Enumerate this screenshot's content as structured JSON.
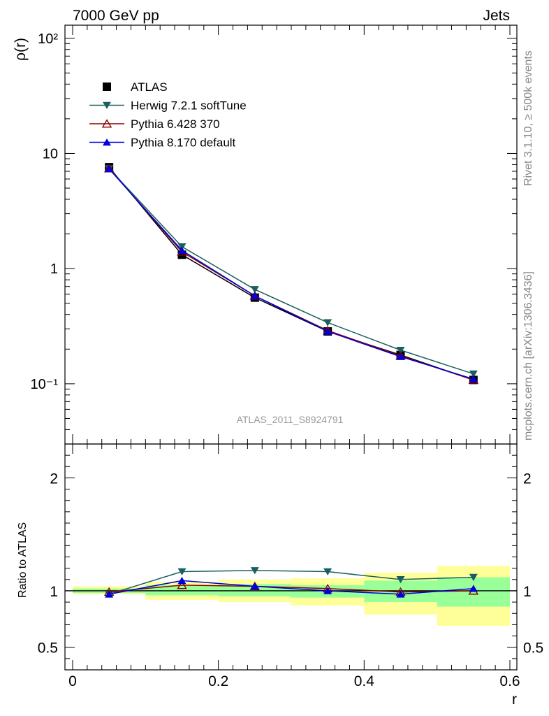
{
  "header": {
    "left": "7000 GeV pp",
    "right": "Jets"
  },
  "side_labels": {
    "top": "Rivet 3.1.10, ≥ 500k events",
    "bottom": "mcplots.cern.ch [arXiv:1306.3436]"
  },
  "watermark": "ATLAS_2011_S8924791",
  "colors": {
    "atlas": "#000000",
    "herwig": "#1a5f5f",
    "pythia6": "#8b0000",
    "pythia8": "#0000dd",
    "band_yellow": "#ffff99",
    "band_green": "#99ff99"
  },
  "chart_data": [
    {
      "type": "line",
      "ylabel": "ρ(r)",
      "xlabel": "",
      "yscale": "log",
      "ylim": [
        0.03,
        130
      ],
      "xlim": [
        0,
        0.6
      ],
      "y_tick_labels": [
        "10⁻¹",
        "1",
        "10",
        "10²"
      ],
      "legend": [
        "ATLAS",
        "Herwig 7.2.1 softTune",
        "Pythia 6.428 370",
        "Pythia 8.170 default"
      ],
      "legend_placement": "top-left",
      "x": [
        0.05,
        0.15,
        0.25,
        0.35,
        0.45,
        0.55
      ],
      "series": [
        {
          "name": "ATLAS",
          "marker": "square",
          "values": [
            7.6,
            1.32,
            0.56,
            0.285,
            0.178,
            0.108
          ]
        },
        {
          "name": "Herwig 7.2.1 softTune",
          "marker": "triangle-down",
          "values": [
            7.4,
            1.55,
            0.66,
            0.34,
            0.196,
            0.122
          ]
        },
        {
          "name": "Pythia 6.428 370",
          "marker": "triangle-up-open",
          "values": [
            7.4,
            1.4,
            0.58,
            0.29,
            0.175,
            0.108
          ]
        },
        {
          "name": "Pythia 8.170 default",
          "marker": "triangle-up",
          "values": [
            7.35,
            1.44,
            0.58,
            0.285,
            0.172,
            0.11
          ]
        }
      ]
    },
    {
      "type": "line",
      "ylabel": "Ratio to ATLAS",
      "xlabel": "r",
      "ylim": [
        0.3,
        2.3
      ],
      "xlim": [
        0,
        0.6
      ],
      "x_ticks": [
        0,
        0.2,
        0.4,
        0.6
      ],
      "x_tick_labels": [
        "0",
        "0.2",
        "0.4",
        "0.6"
      ],
      "y_ticks": [
        0.5,
        1,
        2
      ],
      "y_tick_labels": [
        "0.5",
        "1",
        "2"
      ],
      "x": [
        0.05,
        0.15,
        0.25,
        0.35,
        0.45,
        0.55
      ],
      "bands": {
        "edges": [
          0,
          0.1,
          0.2,
          0.3,
          0.4,
          0.5,
          0.6
        ],
        "yellow": [
          [
            0.97,
            1.04
          ],
          [
            0.92,
            1.08
          ],
          [
            0.9,
            1.1
          ],
          [
            0.87,
            1.11
          ],
          [
            0.79,
            1.16
          ],
          [
            0.69,
            1.22
          ]
        ],
        "green": [
          [
            0.98,
            1.02
          ],
          [
            0.96,
            1.05
          ],
          [
            0.95,
            1.06
          ],
          [
            0.94,
            1.05
          ],
          [
            0.9,
            1.09
          ],
          [
            0.86,
            1.12
          ]
        ]
      },
      "series": [
        {
          "name": "Herwig 7.2.1 softTune",
          "values": [
            0.97,
            1.17,
            1.18,
            1.17,
            1.1,
            1.12
          ]
        },
        {
          "name": "Pythia 6.428 370",
          "values": [
            0.99,
            1.05,
            1.04,
            1.02,
            0.99,
            1.0
          ]
        },
        {
          "name": "Pythia 8.170 default",
          "values": [
            0.97,
            1.09,
            1.04,
            1.0,
            0.97,
            1.02
          ]
        }
      ]
    }
  ]
}
